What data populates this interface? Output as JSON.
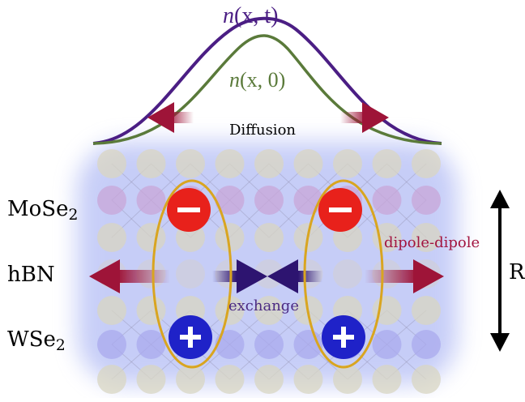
{
  "labels": {
    "n_xt": {
      "n": "n",
      "args": "(x, t)"
    },
    "n_x0": {
      "n": "n",
      "args": "(x, 0)"
    },
    "diffusion": "Diffusion",
    "layer_top": {
      "base": "MoSe",
      "sub": "2"
    },
    "layer_mid": "hBN",
    "layer_bottom": {
      "base": "WSe",
      "sub": "2"
    },
    "dipole": "dipole-dipole",
    "exchange": "exchange",
    "distance": "R",
    "minus_sign": "−",
    "plus_sign": "+"
  },
  "colors": {
    "purple_curve": "#4b1e84",
    "green_curve": "#5a7a3a",
    "crimson_arrow": "#9e1438",
    "exchange_triangle": "#2d1470",
    "ellipse": "#d9a520",
    "electron": "#e8211b",
    "hole": "#1f22c8",
    "glow": "#9aa6ee",
    "dipole_text": "#a21440",
    "exchange_text": "#4b2a82"
  },
  "icons": {
    "electron": "minus-circle-icon",
    "hole": "plus-circle-icon",
    "diffusion_arrows": "arrow-left-icon / arrow-right-icon",
    "dipole_arrows": "double-arrow-icon",
    "exchange": "bowtie-triangles-icon",
    "distance": "vertical-double-arrow-icon"
  }
}
